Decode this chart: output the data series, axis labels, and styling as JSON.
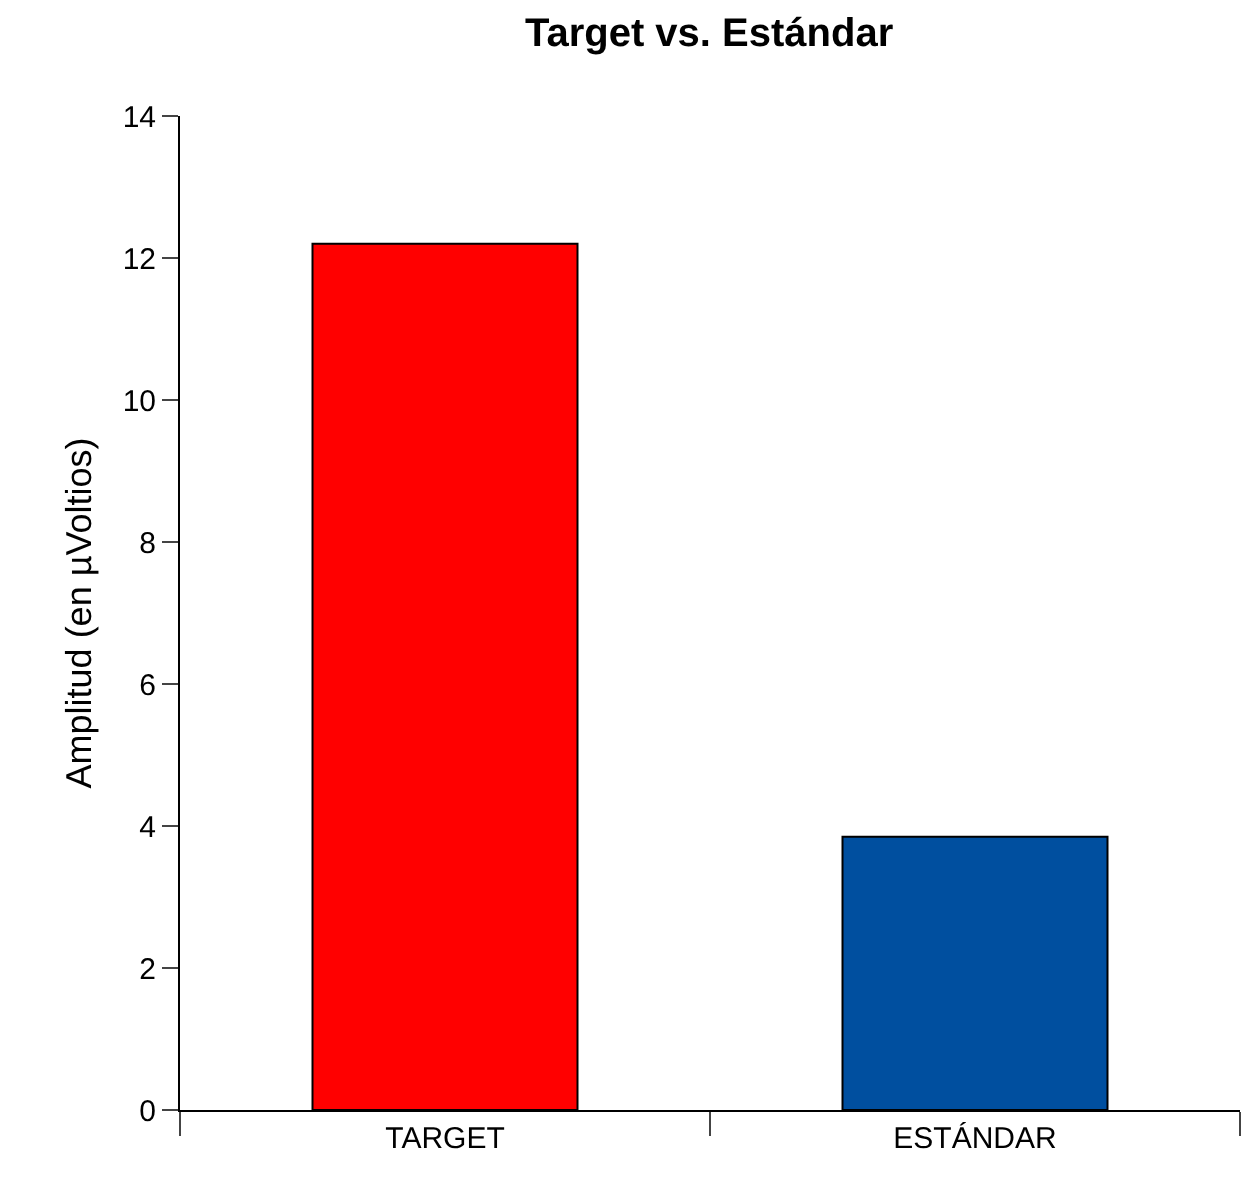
{
  "chart_data": {
    "type": "bar",
    "title": "Target vs. Estándar",
    "ylabel": "Amplitud (en µVoltios)",
    "categories": [
      "TARGET",
      "ESTÁNDAR"
    ],
    "colors": [
      "#ff0000",
      "#004f9f"
    ],
    "values": [
      12.2,
      3.85
    ],
    "ylim": [
      0,
      14
    ],
    "yticks": [
      0,
      2,
      4,
      6,
      8,
      10,
      12,
      14
    ]
  }
}
